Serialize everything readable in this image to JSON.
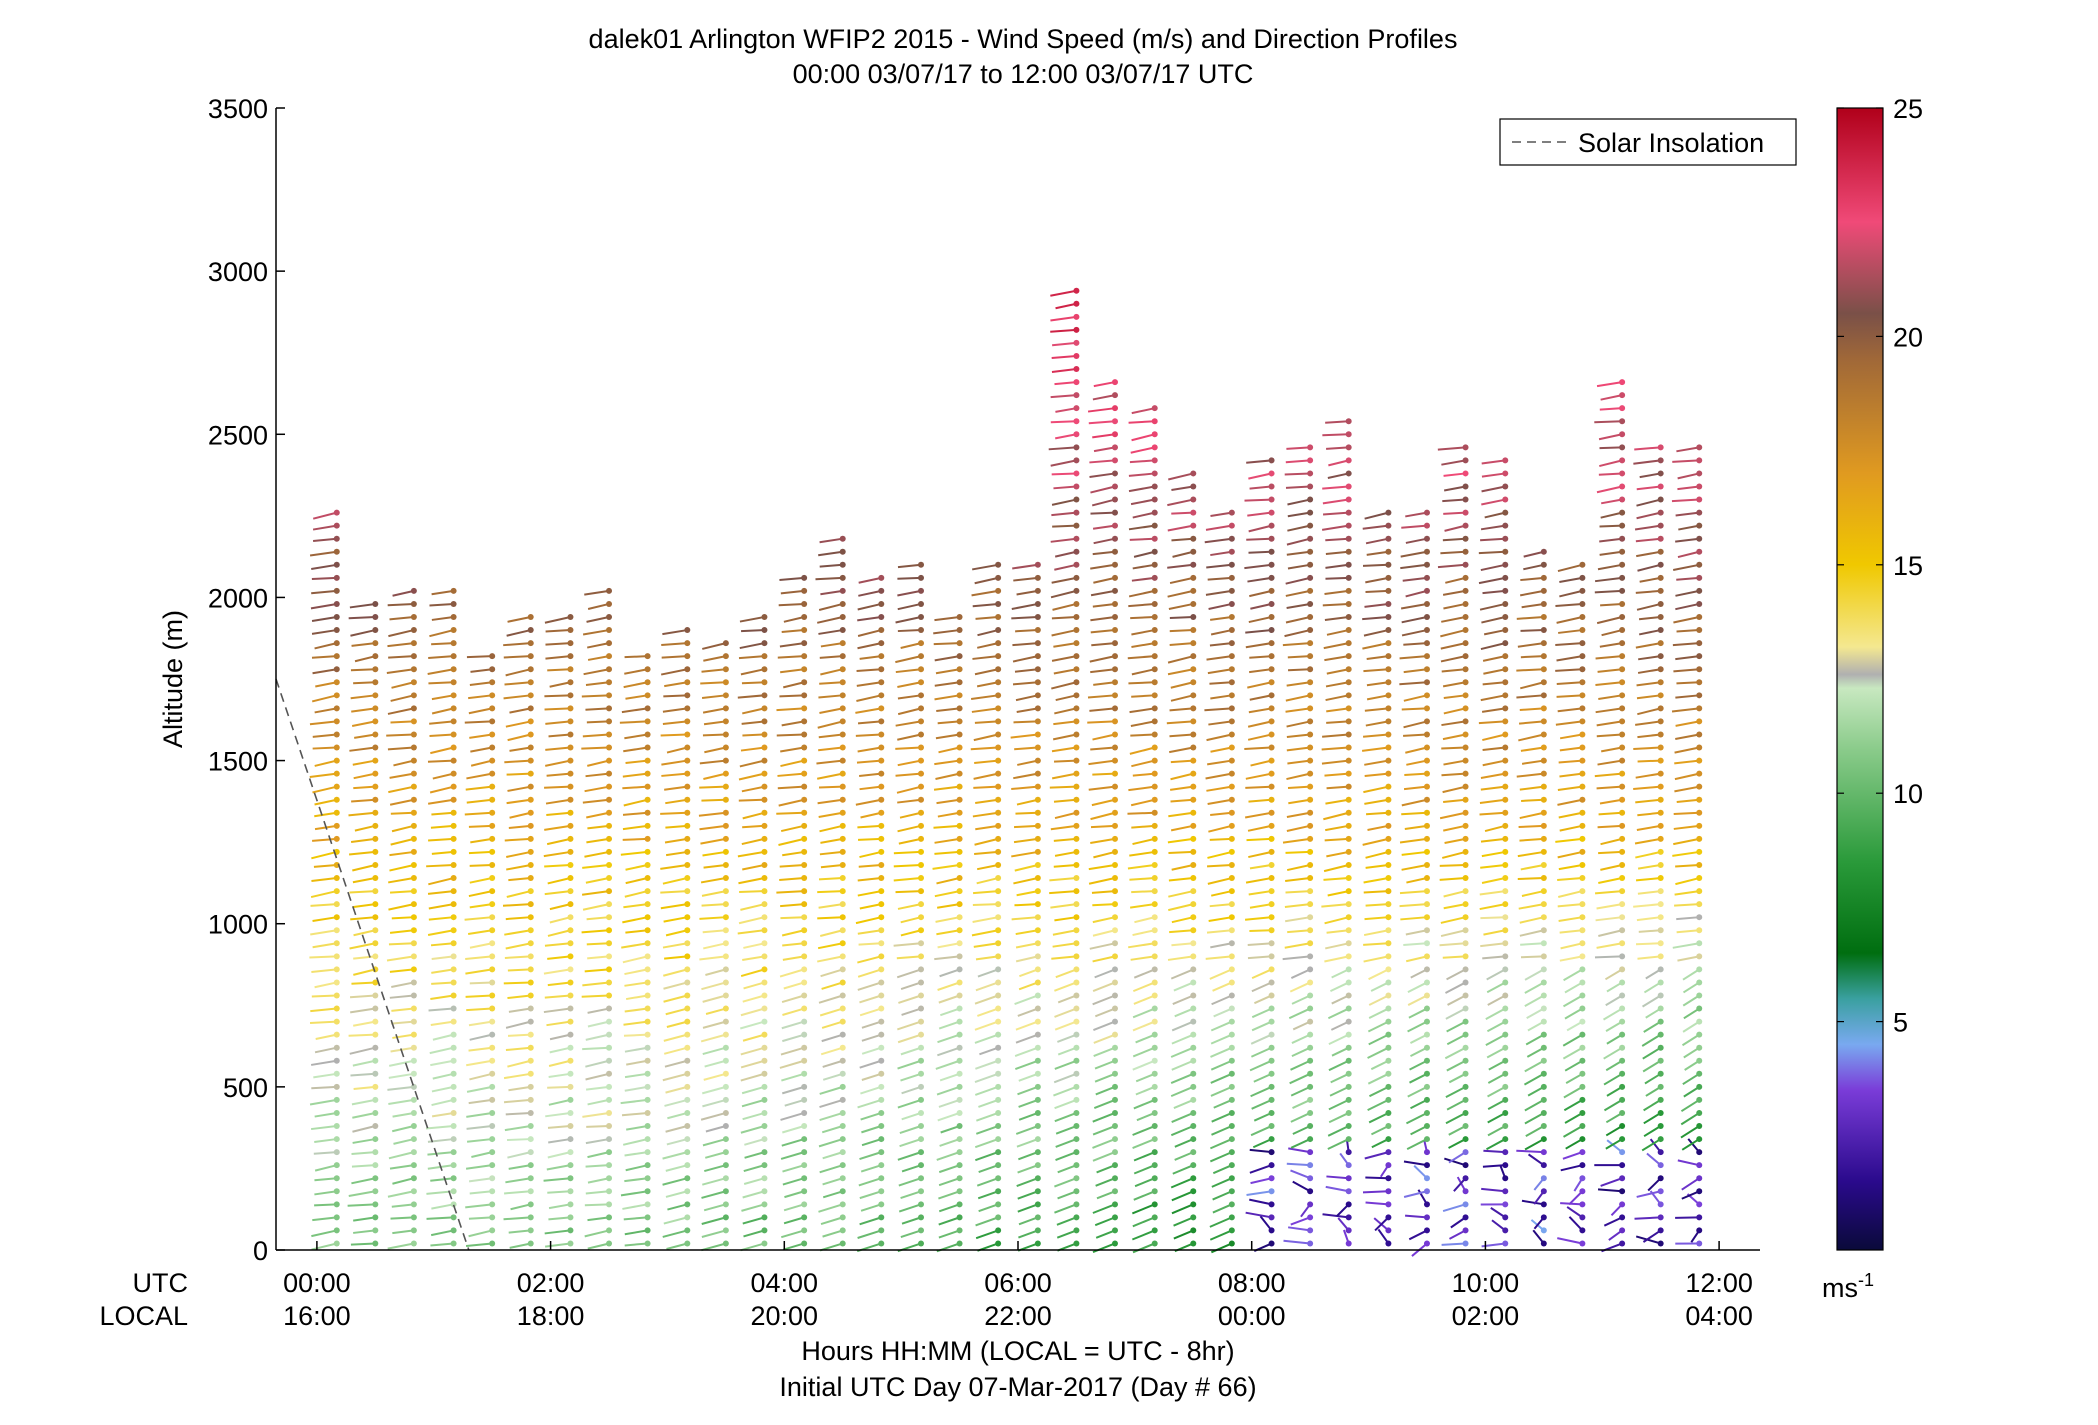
{
  "title_line1": "dalek01 Arlington WFIP2 2015 - Wind Speed (m/s) and Direction Profiles",
  "title_line2": "00:00 03/07/17 to 12:00 03/07/17  UTC",
  "ylabel": "Altitude (m)",
  "row_label_utc": "UTC",
  "row_label_local": "LOCAL",
  "xlabel_line1": "Hours HH:MM  (LOCAL = UTC - 8hr)",
  "xlabel_line2": "Initial UTC Day 07-Mar-2017 (Day # 66)",
  "legend_label": "Solar Insolation",
  "colorbar_unit": "ms",
  "colorbar_unit_exp": "-1",
  "chart_data": {
    "type": "wind-barb-profile",
    "x_range_utc_hours": [
      -0.35,
      12.35
    ],
    "ylim": [
      0,
      3500
    ],
    "y_ticks": [
      0,
      500,
      1000,
      1500,
      2000,
      2500,
      3000,
      3500
    ],
    "x_ticks_utc": [
      "00:00",
      "02:00",
      "04:00",
      "06:00",
      "08:00",
      "10:00",
      "12:00"
    ],
    "x_ticks_local": [
      "16:00",
      "18:00",
      "20:00",
      "22:00",
      "00:00",
      "02:00",
      "04:00"
    ],
    "colorbar_ticks": [
      5,
      10,
      15,
      20,
      25
    ],
    "colorbar_range": [
      0,
      25
    ],
    "colormap": [
      {
        "v": 0,
        "c": "#0a0a3a"
      },
      {
        "v": 1.5,
        "c": "#2a0a8c"
      },
      {
        "v": 3.5,
        "c": "#7a3cd8"
      },
      {
        "v": 4.5,
        "c": "#79a9f0"
      },
      {
        "v": 5.5,
        "c": "#3aa0a0"
      },
      {
        "v": 6.5,
        "c": "#006e10"
      },
      {
        "v": 8.5,
        "c": "#2a9a3a"
      },
      {
        "v": 11,
        "c": "#8ccc8c"
      },
      {
        "v": 12.3,
        "c": "#c8e8c0"
      },
      {
        "v": 12.6,
        "c": "#b0b0b0"
      },
      {
        "v": 13.2,
        "c": "#f4e890"
      },
      {
        "v": 15,
        "c": "#f0c800"
      },
      {
        "v": 17,
        "c": "#e09a20"
      },
      {
        "v": 19.5,
        "c": "#a06838"
      },
      {
        "v": 20.5,
        "c": "#7a5048"
      },
      {
        "v": 22.5,
        "c": "#f04a78"
      },
      {
        "v": 25,
        "c": "#b0001a"
      }
    ],
    "solar_insolation": {
      "utc_hours": [
        -0.35,
        1.3
      ],
      "altitude_m": [
        1750,
        0
      ],
      "style": "dashed gray"
    },
    "profiles_utc_hours": [
      0.17,
      0.5,
      0.83,
      1.17,
      1.5,
      1.83,
      2.17,
      2.5,
      2.83,
      3.17,
      3.5,
      3.83,
      4.17,
      4.5,
      4.83,
      5.17,
      5.5,
      5.83,
      6.17,
      6.5,
      6.83,
      7.17,
      7.5,
      7.83,
      8.17,
      8.5,
      8.83,
      9.17,
      9.5,
      9.83,
      10.17,
      10.5,
      10.83,
      11.17,
      11.5,
      11.83
    ],
    "profile_top_altitude_m": [
      2260,
      2000,
      2040,
      2040,
      1840,
      1960,
      1940,
      2040,
      1840,
      1900,
      1880,
      1940,
      2060,
      2180,
      2080,
      2120,
      1960,
      2120,
      2120,
      2960,
      2680,
      2600,
      2380,
      2280,
      2450,
      2480,
      2550,
      2280,
      2260,
      2460,
      2420,
      2170,
      2100,
      2680,
      2460,
      2480
    ],
    "speed_profile_ms": [
      {
        "altitude_m": 0,
        "speed": 10.5
      },
      {
        "altitude_m": 500,
        "speed": 12.5
      },
      {
        "altitude_m": 1000,
        "speed": 14.5
      },
      {
        "altitude_m": 1500,
        "speed": 17.5
      },
      {
        "altitude_m": 2000,
        "speed": 20
      },
      {
        "altitude_m": 2500,
        "speed": 22
      }
    ],
    "low_level_speed_trend": "speeds below ~300 m drop to 1-4 m/s after 08:00 UTC",
    "levels_spacing_m": 40
  }
}
